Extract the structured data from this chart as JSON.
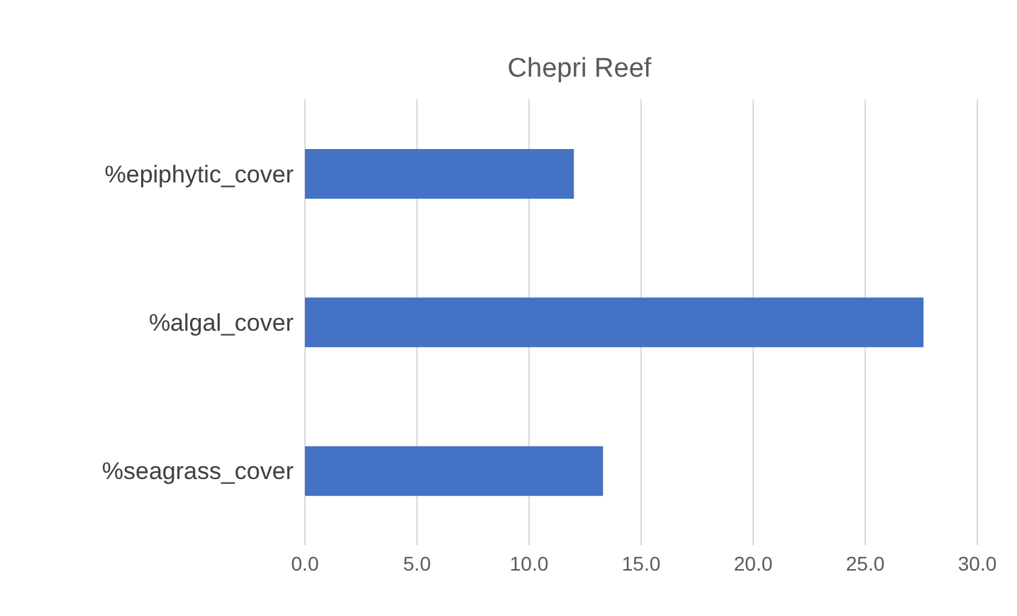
{
  "chart_data": {
    "type": "bar",
    "orientation": "horizontal",
    "title": "Chepri Reef",
    "categories": [
      "%epiphytic_cover",
      "%algal_cover",
      "%seagrass_cover"
    ],
    "values": [
      12.0,
      27.6,
      13.3
    ],
    "color": "#4472c4",
    "xlim": [
      0,
      30
    ],
    "xticks": [
      {
        "value": 0,
        "label": "0.0"
      },
      {
        "value": 5,
        "label": "5.0"
      },
      {
        "value": 10,
        "label": "10.0"
      },
      {
        "value": 15,
        "label": "15.0"
      },
      {
        "value": 20,
        "label": "20.0"
      },
      {
        "value": 25,
        "label": "25.0"
      },
      {
        "value": 30,
        "label": "30.0"
      }
    ],
    "grid": "x"
  }
}
